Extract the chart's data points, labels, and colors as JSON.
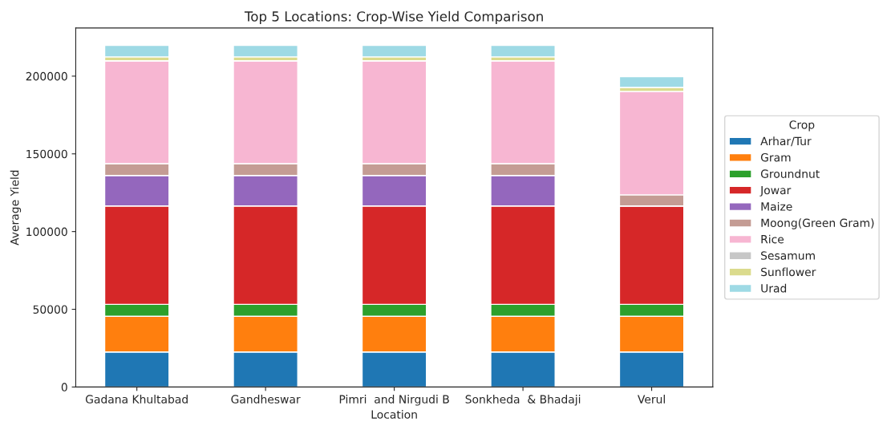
{
  "chart_data": {
    "type": "bar",
    "stacked": true,
    "title": "Top 5 Locations: Crop-Wise Yield Comparison",
    "xlabel": "Location",
    "ylabel": "Average Yield",
    "legend_title": "Crop",
    "categories": [
      "Gadana Khultabad",
      "Gandheswar",
      "Pimri  and Nirgudi B",
      "Sonkheda  & Bhadaji",
      "Verul"
    ],
    "series": [
      {
        "name": "Arhar/Tur",
        "color": "#1f77b4",
        "values": [
          22500,
          22500,
          22500,
          22500,
          22500
        ]
      },
      {
        "name": "Gram",
        "color": "#ff7f0e",
        "values": [
          23000,
          23000,
          23000,
          23000,
          23000
        ]
      },
      {
        "name": "Groundnut",
        "color": "#2ca02c",
        "values": [
          7700,
          7700,
          7700,
          7700,
          7700
        ]
      },
      {
        "name": "Jowar",
        "color": "#d62728",
        "values": [
          63300,
          63300,
          63300,
          63300,
          63300
        ]
      },
      {
        "name": "Maize",
        "color": "#9467bd",
        "values": [
          19600,
          19600,
          19600,
          19600,
          0
        ]
      },
      {
        "name": "Moong(Green Gram)",
        "color": "#c49c94",
        "values": [
          7600,
          7600,
          7600,
          7600,
          7100
        ]
      },
      {
        "name": "Rice",
        "color": "#f7b6d2",
        "values": [
          66200,
          66200,
          66200,
          66200,
          66600
        ]
      },
      {
        "name": "Sesamum",
        "color": "#c7c7c7",
        "values": [
          0,
          0,
          0,
          0,
          0
        ]
      },
      {
        "name": "Sunflower",
        "color": "#dbdb8d",
        "values": [
          2500,
          2500,
          2500,
          2500,
          2500
        ]
      },
      {
        "name": "Urad",
        "color": "#9edae5",
        "values": [
          7400,
          7400,
          7400,
          7400,
          6900
        ]
      }
    ],
    "ylim": [
      0,
      231000
    ],
    "yticks": [
      0,
      50000,
      100000,
      150000,
      200000
    ],
    "grid": false,
    "legend": "right"
  }
}
